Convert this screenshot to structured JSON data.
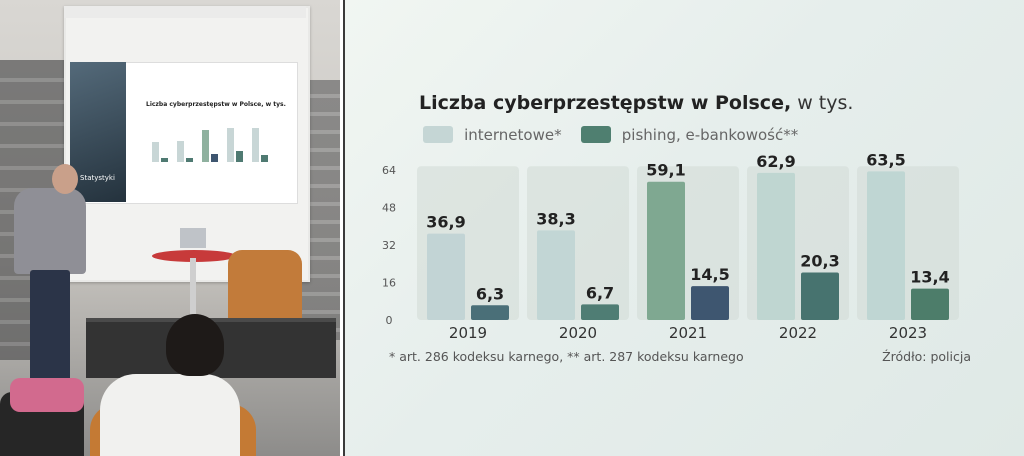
{
  "photo": {
    "slide_title": "Liczba cyberprzestępstw w Polsce, w tys.",
    "slide_side_label": "Statystyki"
  },
  "chart_data": {
    "type": "bar",
    "title": "Liczba cyberprzestępstw w Polsce,",
    "title_unit": "w tys.",
    "categories": [
      "2019",
      "2020",
      "2021",
      "2022",
      "2023"
    ],
    "series": [
      {
        "name": "internetowe*",
        "values": [
          36.9,
          38.3,
          59.1,
          62.9,
          63.5
        ],
        "labels": [
          "36,9",
          "38,3",
          "59,1",
          "62,9",
          "63,5"
        ]
      },
      {
        "name": "pishing, e-bankowość**",
        "values": [
          6.3,
          6.7,
          14.5,
          20.3,
          13.4
        ],
        "labels": [
          "6,3",
          "6,7",
          "14,5",
          "20,3",
          "13,4"
        ]
      }
    ],
    "yticks": [
      0,
      16,
      32,
      48,
      64
    ],
    "ylim": [
      0,
      64
    ],
    "legend": "top-left",
    "grid": false,
    "footnote": "* art. 286 kodeksu karnego, ** art. 287 kodeksu karnego",
    "source": "Źródło: policja",
    "colors": {
      "internetowe": [
        "#c2d4d5",
        "#c2d6d5",
        "#7fa891",
        "#bfd6d1",
        "#bfd6d3"
      ],
      "pishing": [
        "#4a6f78",
        "#4f7d74",
        "#3e5670",
        "#47736f",
        "#4d7d6a"
      ],
      "column_bg": "#d2dbd6",
      "text": "#222222"
    }
  }
}
